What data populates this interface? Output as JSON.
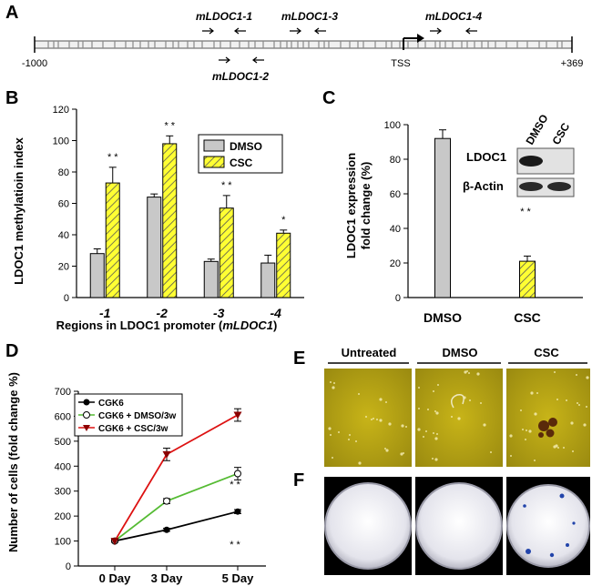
{
  "panels": {
    "a": "A",
    "b": "B",
    "c": "C",
    "d": "D",
    "e": "E",
    "f": "F"
  },
  "panel_a": {
    "start_label": "-1000",
    "end_label": "+369",
    "tss_label": "TSS",
    "regions": [
      "mLDOC1-1",
      "mLDOC1-2",
      "mLDOC1-3",
      "mLDOC1-4"
    ]
  },
  "panel_e": {
    "labels": [
      "Untreated",
      "DMSO",
      "CSC"
    ]
  },
  "chart_data": [
    {
      "panel": "B",
      "type": "bar",
      "ylabel": "LDOC1 methylatioin index",
      "xlabel_prefix": "Regions in LDOC1 promoter (",
      "xlabel_italic": "mLDOC1",
      "xlabel_suffix": ")",
      "categories": [
        "-1",
        "-2",
        "-3",
        "-4"
      ],
      "ylim": [
        0,
        120
      ],
      "yticks": [
        "0",
        "20",
        "40",
        "60",
        "80",
        "100",
        "120"
      ],
      "series": [
        {
          "name": "DMSO",
          "values": [
            28,
            64,
            23,
            22
          ],
          "errors": [
            3,
            2,
            1.5,
            5
          ],
          "color": "#c8c8c8"
        },
        {
          "name": "CSC",
          "values": [
            73,
            98,
            57,
            41
          ],
          "errors": [
            10,
            5,
            8,
            2
          ],
          "color": "#ffff33"
        }
      ],
      "significance": [
        "* *",
        "* *",
        "* *",
        "*"
      ]
    },
    {
      "panel": "C",
      "type": "bar",
      "ylabel_line1": "LDOC1 expression",
      "ylabel_line2": "fold change (%)",
      "categories": [
        "DMSO",
        "CSC"
      ],
      "values": [
        92,
        21
      ],
      "errors": [
        5,
        3
      ],
      "colors": [
        "#c8c8c8",
        "#ffff33"
      ],
      "ylim": [
        0,
        100
      ],
      "yticks": [
        "0",
        "20",
        "40",
        "60",
        "80",
        "100"
      ],
      "significance": "* *",
      "inset": {
        "lanes": [
          "DMSO",
          "CSC"
        ],
        "rows": [
          "LDOC1",
          "β-Actin"
        ]
      }
    },
    {
      "panel": "D",
      "type": "line",
      "ylabel": "Number of cells (fold change %)",
      "categories": [
        "0 Day",
        "3 Day",
        "5 Day"
      ],
      "ylim": [
        0,
        700
      ],
      "yticks": [
        "0",
        "100",
        "200",
        "300",
        "400",
        "500",
        "600",
        "700"
      ],
      "series": [
        {
          "name": "CGK6",
          "values": [
            100,
            145,
            218
          ],
          "errors": [
            5,
            6,
            8
          ],
          "color": "#000000",
          "marker": "circle-filled"
        },
        {
          "name": "CGK6 + DMSO/3w",
          "values": [
            100,
            260,
            370
          ],
          "errors": [
            5,
            10,
            25
          ],
          "color": "#55bb33",
          "marker": "circle-open"
        },
        {
          "name": "CGK6 + CSC/3w",
          "values": [
            100,
            447,
            605
          ],
          "errors": [
            5,
            25,
            25
          ],
          "color": "#dd1111",
          "marker": "triangle-down"
        }
      ],
      "significance": [
        "* *",
        "* *"
      ]
    }
  ]
}
